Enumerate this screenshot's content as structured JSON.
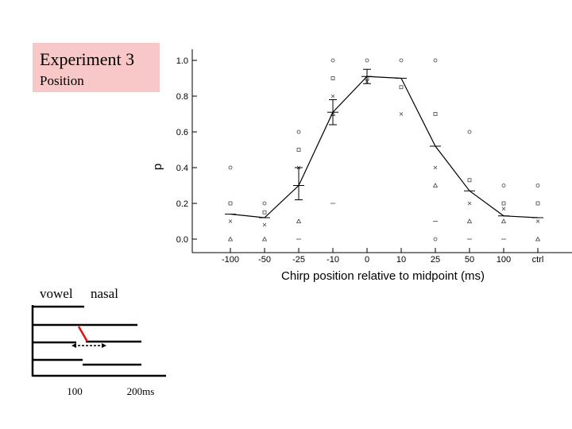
{
  "title_box": {
    "title": "Experiment 3",
    "subtitle": "Position"
  },
  "chart_data": {
    "type": "line",
    "xlabel": "Chirp position relative to midpoint (ms)",
    "ylabel": "p",
    "ylim": [
      0,
      1.0
    ],
    "categories": [
      "-100",
      "-50",
      "-25",
      "-10",
      "0",
      "10",
      "25",
      "50",
      "100",
      "ctrl"
    ],
    "yticks": [
      "0.0",
      "0.2",
      "0.4",
      "0.6",
      "0.8",
      "1.0"
    ],
    "series": [
      {
        "values": [
          0.14,
          0.12,
          0.3,
          0.71,
          0.91,
          0.9,
          0.52,
          0.27,
          0.13,
          0.12
        ]
      }
    ],
    "error_bars": [
      {
        "index": 2,
        "low": 0.22,
        "high": 0.4
      },
      {
        "index": 3,
        "low": 0.64,
        "high": 0.78
      },
      {
        "index": 4,
        "low": 0.87,
        "high": 0.95
      }
    ],
    "subject_markers": [
      {
        "index": 0,
        "values": [
          0.4,
          0.2,
          0.1,
          0.0
        ]
      },
      {
        "index": 1,
        "values": [
          0.2,
          0.15,
          0.08,
          0.0
        ]
      },
      {
        "index": 2,
        "values": [
          0.6,
          0.5,
          0.4,
          0.1,
          0.0
        ]
      },
      {
        "index": 3,
        "values": [
          1.0,
          0.9,
          0.8,
          0.7,
          0.2
        ]
      },
      {
        "index": 4,
        "values": [
          1.0,
          0.9,
          0.88
        ]
      },
      {
        "index": 5,
        "values": [
          1.0,
          0.85,
          0.7
        ]
      },
      {
        "index": 6,
        "values": [
          1.0,
          0.7,
          0.4,
          0.3,
          0.1,
          0.0
        ]
      },
      {
        "index": 7,
        "values": [
          0.6,
          0.33,
          0.2,
          0.1,
          0.0
        ]
      },
      {
        "index": 8,
        "values": [
          0.3,
          0.2,
          0.17,
          0.1,
          0.0
        ]
      },
      {
        "index": 9,
        "values": [
          0.3,
          0.2,
          0.1,
          0.0
        ]
      }
    ]
  },
  "diagram": {
    "vowel_label": "vowel",
    "nasal_label": "nasal",
    "tick_100": "100",
    "tick_200": "200ms"
  }
}
